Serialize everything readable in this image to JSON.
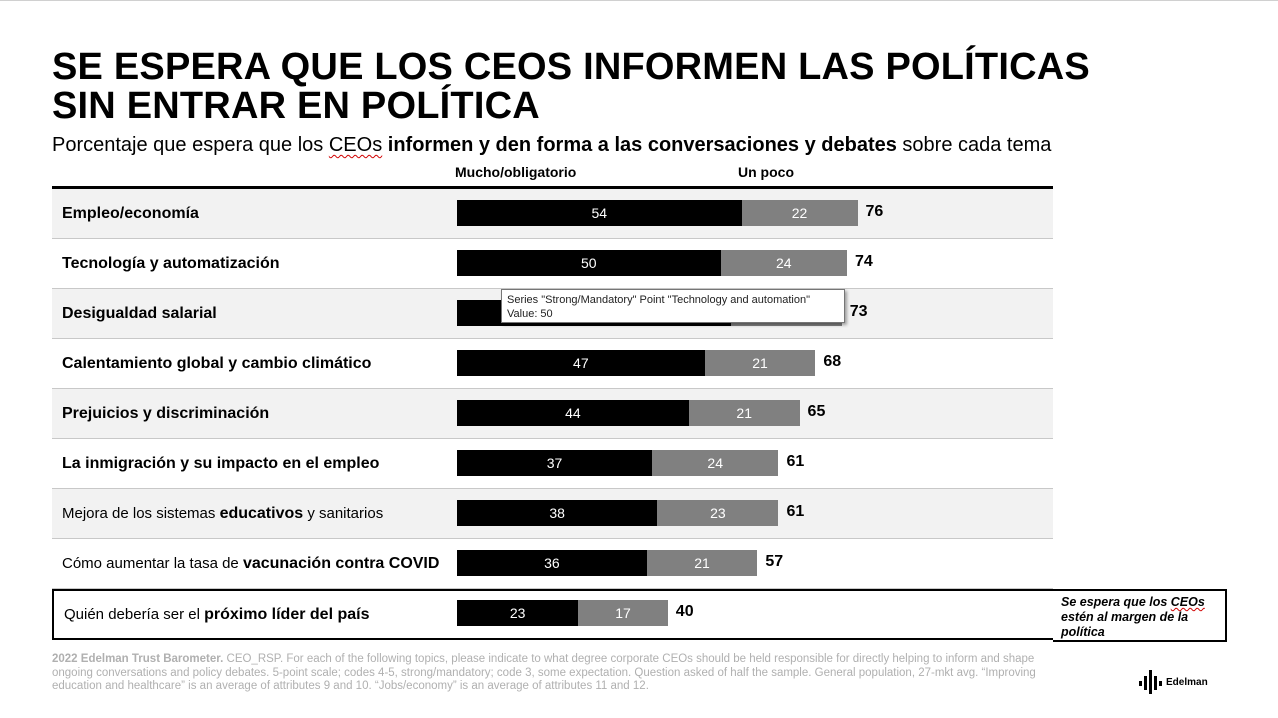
{
  "slide": {
    "title_line1": "SE ESPERA QUE LOS CEOS INFORMEN LAS POLÍTICAS",
    "title_line2": "SIN ENTRAR EN POLÍTICA",
    "subtitle": {
      "part1": "Porcentaje que espera que los ",
      "ceos": "CEOs",
      "part2": " ",
      "bold": "informen y den forma a las conversaciones y debates",
      "part3": " sobre cada tema"
    },
    "callout": {
      "part1": "Se espera que los ",
      "ceos": "CEOs",
      "part2": " estén al margen de la política"
    },
    "footnote": {
      "bold": "2022 Edelman Trust Barometer.",
      "text": " CEO_RSP. For each of the following topics, please indicate to what degree corporate CEOs should be held responsible for directly helping to inform and shape ongoing conversations and policy debates. 5-point scale; codes 4-5, strong/mandatory; code 3, some expectation. Question asked of half the sample. General population, 27-mkt avg. “Improving education and healthcare” is an average of attributes 9 and 10. “Jobs/economy” is an average of attributes 11 and 12."
    },
    "logo_text": "Edelman",
    "colors": {
      "strong": "#000000",
      "some": "#808080",
      "row_alt": "#f2f2f2"
    }
  },
  "tooltip": {
    "line1": "Series \"Strong/Mandatory\" Point \"Technology and automation\"",
    "line2": "Value: 50"
  },
  "chart_data": {
    "type": "bar",
    "orientation": "horizontal",
    "stacked": true,
    "categories": [
      "Empleo/economía",
      "Tecnología y automatización",
      "Desigualdad salarial",
      "Calentamiento global y cambio climático",
      "Prejuicios y discriminación",
      "La inmigración y su impacto en el empleo",
      "Mejora de los sistemas educativos y sanitarios",
      "Cómo aumentar la tasa de vacunación contra COVID",
      "Quién debería ser el próximo líder del país"
    ],
    "series": [
      {
        "name": "Mucho/obligatorio",
        "values": [
          54,
          50,
          52,
          47,
          44,
          37,
          38,
          36,
          23
        ],
        "show_labels": [
          true,
          true,
          false,
          true,
          true,
          true,
          true,
          true,
          true
        ]
      },
      {
        "name": "Un poco",
        "values": [
          22,
          24,
          21,
          21,
          21,
          24,
          23,
          21,
          17
        ],
        "show_labels": [
          true,
          true,
          false,
          true,
          true,
          true,
          true,
          true,
          true
        ]
      }
    ],
    "totals": [
      76,
      74,
      73,
      68,
      65,
      61,
      61,
      57,
      40
    ],
    "legend_position": "top",
    "grid": false
  }
}
